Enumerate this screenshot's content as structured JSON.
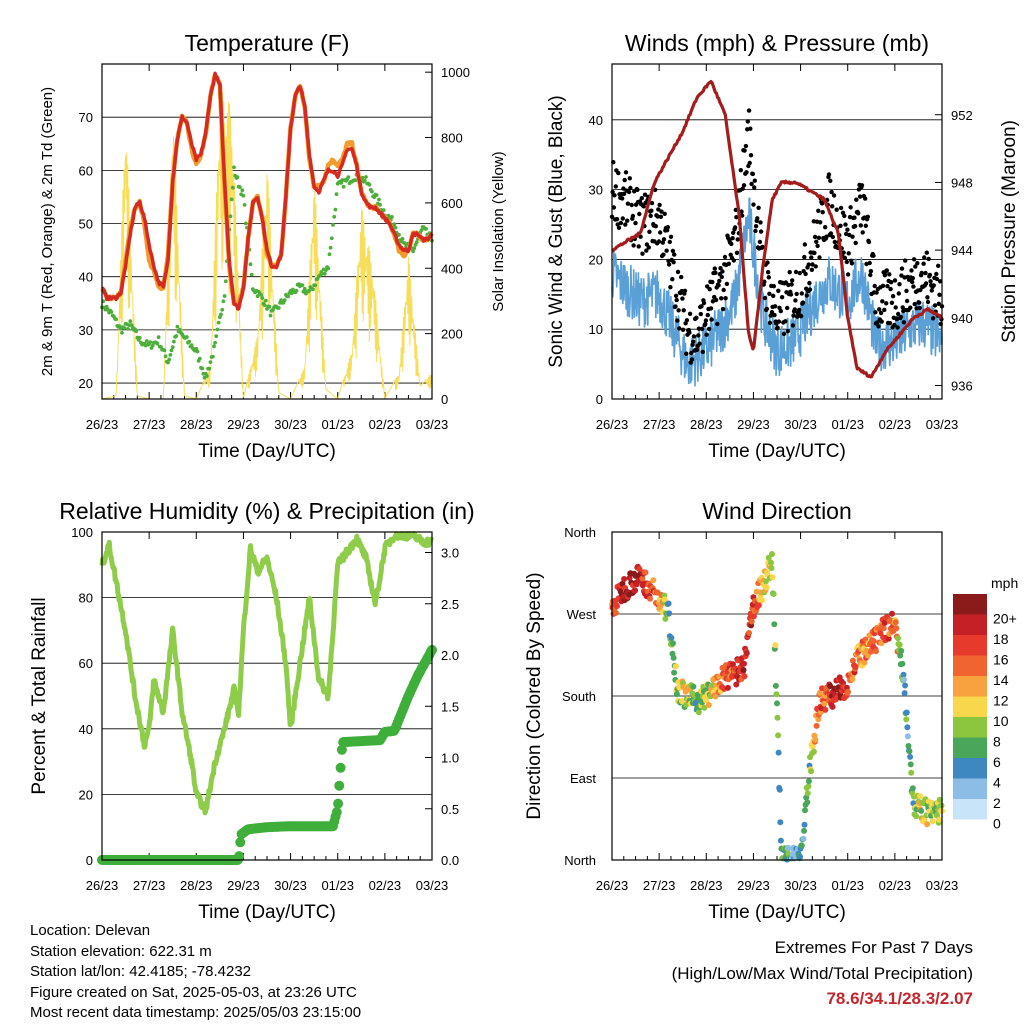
{
  "footer": {
    "location": "Location: Delevan",
    "elevation": "Station elevation: 622.31 m",
    "latlon": "Station lat/lon: 42.4185; -78.4232",
    "created": "Figure created on Sat, 2025-05-03, at 23:26 UTC",
    "recent": "Most recent data timestamp: 2025/05/03 23:15:00",
    "extremes_title": "Extremes For Past 7 Days",
    "extremes_subtitle": "(High/Low/Max Wind/Total Precipitation)",
    "extremes_values": "78.6/34.1/28.3/2.07"
  },
  "colors": {
    "temp_red": "#d42a22",
    "temp_orange": "#f39a2c",
    "dewpoint_green": "#4daf3b",
    "solar_yellow": "#f7de5a",
    "gust_black": "#000000",
    "wind_blue": "#5a9fd6",
    "pressure_maroon": "#a51c1c",
    "rh_lightgreen": "#8fcc4a",
    "precip_green": "#3fae3b"
  },
  "chart_data": [
    {
      "type": "line",
      "title": "Temperature (F)",
      "xlabel": "Time (Day/UTC)",
      "ylabel": "2m & 9m T (Red, Orange) & 2m Td (Green)",
      "ylabel_right": "Solar Insolation (Yellow)",
      "x_ticks": [
        "26/23",
        "27/23",
        "28/23",
        "29/23",
        "30/23",
        "01/23",
        "02/23",
        "03/23"
      ],
      "ylim": [
        17,
        80
      ],
      "yticks": [
        20,
        30,
        40,
        50,
        60,
        70
      ],
      "ylim_right": [
        0,
        1025
      ],
      "yticks_right": [
        0,
        200,
        400,
        600,
        800,
        1000
      ],
      "grid": true,
      "series": [
        {
          "x": [
            0,
            0.1,
            0.2,
            0.3,
            0.4,
            0.5,
            0.6,
            0.7,
            0.8,
            0.9,
            1.0,
            1.1,
            1.2,
            1.3,
            1.4,
            1.5,
            1.6,
            1.7,
            1.8,
            1.9,
            2.0,
            2.1,
            2.2,
            2.3,
            2.4,
            2.5,
            2.6,
            2.7,
            2.8,
            2.9,
            3.0,
            3.1,
            3.2,
            3.3,
            3.4,
            3.5,
            3.6,
            3.7,
            3.8,
            3.9,
            4.0,
            4.1,
            4.2,
            4.3,
            4.4,
            4.5,
            4.6,
            4.7,
            4.8,
            4.9,
            5.0,
            5.1,
            5.2,
            5.3,
            5.4,
            5.5,
            5.6,
            5.7,
            5.8,
            5.9,
            6.0,
            6.1,
            6.2,
            6.3,
            6.4,
            6.5,
            6.6,
            6.7,
            6.8,
            6.9,
            7.0
          ],
          "y": [
            38,
            36,
            36,
            36,
            37,
            42,
            48,
            53,
            54,
            51,
            46,
            42,
            39,
            38,
            43,
            58,
            66,
            70,
            69,
            65,
            62,
            63,
            67,
            74,
            78,
            76,
            58,
            43,
            35,
            34,
            38,
            47,
            54,
            55,
            51,
            45,
            42,
            42,
            44,
            55,
            68,
            74,
            76,
            72,
            63,
            57,
            56,
            58,
            60,
            60,
            59,
            61,
            64,
            64,
            61,
            56,
            54,
            53,
            53,
            52,
            51,
            50,
            48,
            46,
            45,
            45,
            48,
            48,
            47,
            47,
            48
          ]
        },
        {
          "x": [
            0,
            0.1,
            0.2,
            0.3,
            0.4,
            0.5,
            0.6,
            0.7,
            0.8,
            0.9,
            1.0,
            1.1,
            1.2,
            1.3,
            1.4,
            1.5,
            1.6,
            1.7,
            1.8,
            1.9,
            2.0,
            2.1,
            2.2,
            2.3,
            2.4,
            2.5,
            2.6,
            2.7,
            2.8,
            2.9,
            3.0,
            3.1,
            3.2,
            3.3,
            3.4,
            3.5,
            3.6,
            3.7,
            3.8,
            3.9,
            4.0,
            4.1,
            4.2,
            4.3,
            4.4,
            4.5,
            4.6,
            4.7,
            4.8,
            4.9,
            5.0,
            5.1,
            5.2,
            5.3,
            5.4,
            5.5,
            5.6,
            5.7,
            5.8,
            5.9,
            6.0,
            6.1,
            6.2,
            6.3,
            6.4,
            6.5,
            6.6,
            6.7,
            6.8,
            6.9,
            7.0
          ],
          "y": [
            38,
            36,
            36,
            36,
            37,
            43,
            49,
            53,
            54,
            50,
            43,
            41,
            38,
            38,
            44,
            58,
            66,
            70,
            69,
            64,
            61,
            63,
            67,
            74,
            78,
            76,
            57,
            42,
            35,
            35,
            38,
            47,
            54,
            55,
            51,
            44,
            42,
            42,
            44,
            55,
            68,
            74,
            76,
            72,
            62,
            57,
            57,
            58,
            61,
            62,
            61,
            62,
            65,
            65,
            61,
            56,
            54,
            53,
            53,
            52,
            51,
            50,
            48,
            45,
            44,
            45,
            48,
            48,
            47,
            47,
            48
          ]
        },
        {
          "x": [
            0,
            0.2,
            0.4,
            0.6,
            0.8,
            1.0,
            1.2,
            1.4,
            1.6,
            1.8,
            2.0,
            2.2,
            2.4,
            2.6,
            2.8,
            3.0,
            3.2,
            3.4,
            3.6,
            3.8,
            4.0,
            4.2,
            4.4,
            4.6,
            4.8,
            5.0,
            5.2,
            5.4,
            5.6,
            5.8,
            6.0,
            6.2,
            6.4,
            6.6,
            6.8,
            7.0
          ],
          "y": [
            35,
            33,
            30,
            31,
            28,
            27,
            28,
            24,
            30,
            28,
            26,
            21,
            27,
            37,
            60,
            55,
            38,
            36,
            33,
            35,
            37,
            38,
            37,
            40,
            42,
            57,
            58,
            59,
            58,
            55,
            52,
            50,
            46,
            45,
            49,
            47
          ]
        },
        {
          "x": [
            0,
            0.3,
            0.5,
            0.75,
            1.0,
            1.3,
            1.5,
            1.75,
            2.0,
            2.3,
            2.5,
            2.75,
            3.0,
            3.3,
            3.5,
            3.75,
            4.0,
            4.3,
            4.5,
            4.75,
            5.0,
            5.3,
            5.5,
            5.75,
            6.0,
            6.3,
            6.5,
            6.75,
            7.0
          ],
          "y": [
            0,
            10,
            900,
            10,
            0,
            0,
            930,
            10,
            0,
            100,
            950,
            900,
            0,
            200,
            750,
            20,
            0,
            100,
            700,
            30,
            0,
            150,
            600,
            400,
            0,
            80,
            450,
            40,
            80
          ]
        }
      ],
      "legend": []
    },
    {
      "type": "scatter",
      "title": "Winds (mph) & Pressure (mb)",
      "xlabel": "Time (Day/UTC)",
      "ylabel": "Sonic Wind & Gust (Blue, Black)",
      "ylabel_right": "Station Pressure (Maroon)",
      "x_ticks": [
        "26/23",
        "27/23",
        "28/23",
        "29/23",
        "30/23",
        "01/23",
        "02/23",
        "03/23"
      ],
      "ylim": [
        0,
        48
      ],
      "yticks": [
        0,
        10,
        20,
        30,
        40
      ],
      "ylim_right": [
        935.2,
        955.0
      ],
      "yticks_right": [
        936,
        940,
        944,
        948,
        952
      ],
      "grid": true,
      "series": [
        {
          "x": [
            0,
            0.3,
            0.6,
            1.0,
            1.3,
            1.6,
            1.8,
            2.0,
            2.3,
            2.6,
            2.9,
            3.2,
            3.5,
            3.8,
            4.0,
            4.3,
            4.6,
            5.0,
            5.3,
            5.6,
            6.0,
            6.3,
            6.6,
            7.0
          ],
          "y": [
            18,
            16,
            14,
            15,
            10,
            5,
            6,
            7,
            10,
            14,
            26,
            12,
            7,
            8,
            10,
            14,
            17,
            14,
            18,
            8,
            8,
            10,
            11,
            8
          ]
        },
        {
          "x": [
            0,
            0.3,
            0.6,
            1.0,
            1.3,
            1.6,
            1.8,
            2.0,
            2.3,
            2.6,
            2.9,
            3.2,
            3.5,
            3.8,
            4.0,
            4.3,
            4.6,
            5.0,
            5.3,
            5.6,
            6.0,
            6.3,
            6.6,
            7.0
          ],
          "y": [
            30,
            28,
            25,
            26,
            18,
            10,
            9,
            12,
            16,
            22,
            38,
            18,
            12,
            14,
            16,
            22,
            28,
            22,
            28,
            14,
            14,
            16,
            18,
            14
          ]
        },
        {
          "x": [
            0,
            0.3,
            0.6,
            0.9,
            1.2,
            1.5,
            1.8,
            2.1,
            2.4,
            2.7,
            2.9,
            3.0,
            3.2,
            3.4,
            3.6,
            3.9,
            4.2,
            4.5,
            4.8,
            5.0,
            5.2,
            5.5,
            5.8,
            6.1,
            6.4,
            6.7,
            7.0
          ],
          "y": [
            944,
            944.5,
            945,
            948,
            949.5,
            951,
            953,
            954,
            952,
            946,
            939,
            938,
            943,
            947,
            948,
            948,
            947.5,
            947,
            945,
            940,
            937,
            936.5,
            938,
            939,
            940,
            940.5,
            940
          ]
        }
      ],
      "legend": []
    },
    {
      "type": "line",
      "title": "Relative Humidity (%) & Precipitation (in)",
      "xlabel": "Time (Day/UTC)",
      "ylabel": "Percent & Total Rainfall",
      "x_ticks": [
        "26/23",
        "27/23",
        "28/23",
        "29/23",
        "30/23",
        "01/23",
        "02/23",
        "03/23"
      ],
      "ylim": [
        0,
        100
      ],
      "yticks": [
        0,
        20,
        40,
        60,
        80,
        100
      ],
      "ylim_right": [
        0,
        3.2
      ],
      "yticks_right": [
        "0.0",
        "0.5",
        "1.0",
        "1.5",
        "2.0",
        "2.5",
        "3.0"
      ],
      "grid": true,
      "series": [
        {
          "x": [
            0,
            0.15,
            0.3,
            0.5,
            0.7,
            0.9,
            1.0,
            1.1,
            1.3,
            1.5,
            1.7,
            1.9,
            2.0,
            2.2,
            2.4,
            2.6,
            2.8,
            2.9,
            3.0,
            3.15,
            3.3,
            3.5,
            3.7,
            3.9,
            4.0,
            4.2,
            4.4,
            4.6,
            4.8,
            5.0,
            5.2,
            5.4,
            5.6,
            5.8,
            6.0,
            6.2,
            6.4,
            6.6,
            6.8,
            7.0
          ],
          "y": [
            90,
            96,
            85,
            70,
            50,
            35,
            40,
            55,
            45,
            70,
            45,
            30,
            20,
            15,
            30,
            40,
            52,
            45,
            70,
            95,
            88,
            92,
            80,
            60,
            40,
            60,
            80,
            55,
            50,
            90,
            94,
            98,
            92,
            78,
            95,
            99,
            99,
            99,
            97,
            97
          ]
        },
        {
          "x": [
            0,
            1,
            2,
            2.9,
            2.95,
            3.1,
            3.5,
            4.0,
            4.5,
            4.9,
            5.0,
            5.1,
            5.5,
            5.9,
            6.0,
            6.2,
            6.5,
            6.7,
            7.0
          ],
          "y": [
            0,
            0,
            0,
            0,
            0.25,
            0.3,
            0.32,
            0.33,
            0.33,
            0.33,
            0.5,
            1.15,
            1.16,
            1.17,
            1.25,
            1.26,
            1.6,
            1.8,
            2.05
          ]
        }
      ],
      "legend": []
    },
    {
      "type": "scatter",
      "title": "Wind Direction",
      "xlabel": "Time (Day/UTC)",
      "ylabel": "Direction (Colored By Speed)",
      "x_ticks": [
        "26/23",
        "27/23",
        "28/23",
        "29/23",
        "30/23",
        "01/23",
        "02/23",
        "03/23"
      ],
      "yticks": [
        "North",
        "East",
        "South",
        "West",
        "North"
      ],
      "ylim": [
        0,
        360
      ],
      "grid": true,
      "colorbar": {
        "title": "mph",
        "labels": [
          "20+",
          "18",
          "16",
          "14",
          "12",
          "10",
          "8",
          "6",
          "4",
          "2",
          "0"
        ],
        "colors": [
          "#8b1a1a",
          "#c52025",
          "#e53a2c",
          "#f0652f",
          "#f7a23e",
          "#f9d74c",
          "#8cc63f",
          "#4aa65b",
          "#3e87c1",
          "#8bbde6",
          "#c8e4f8"
        ]
      },
      "series": [
        {
          "x": [
            0,
            0.2,
            0.4,
            0.6,
            0.8,
            1.0,
            1.2,
            1.4,
            1.6,
            1.8,
            2.0,
            2.2,
            2.4,
            2.6,
            2.8,
            3.0,
            3.2,
            3.4,
            3.6,
            3.8,
            4.0,
            4.2,
            4.4,
            4.6,
            4.8,
            5.0,
            5.2,
            5.4,
            5.6,
            5.8,
            6.0,
            6.2,
            6.4,
            6.6,
            6.8,
            7.0
          ],
          "y": [
            275,
            295,
            305,
            310,
            300,
            285,
            270,
            185,
            180,
            175,
            180,
            190,
            200,
            205,
            210,
            280,
            300,
            330,
            0,
            0,
            5,
            100,
            175,
            180,
            185,
            195,
            220,
            230,
            240,
            255,
            260,
            195,
            60,
            55,
            50,
            55
          ]
        }
      ],
      "legend": []
    }
  ]
}
